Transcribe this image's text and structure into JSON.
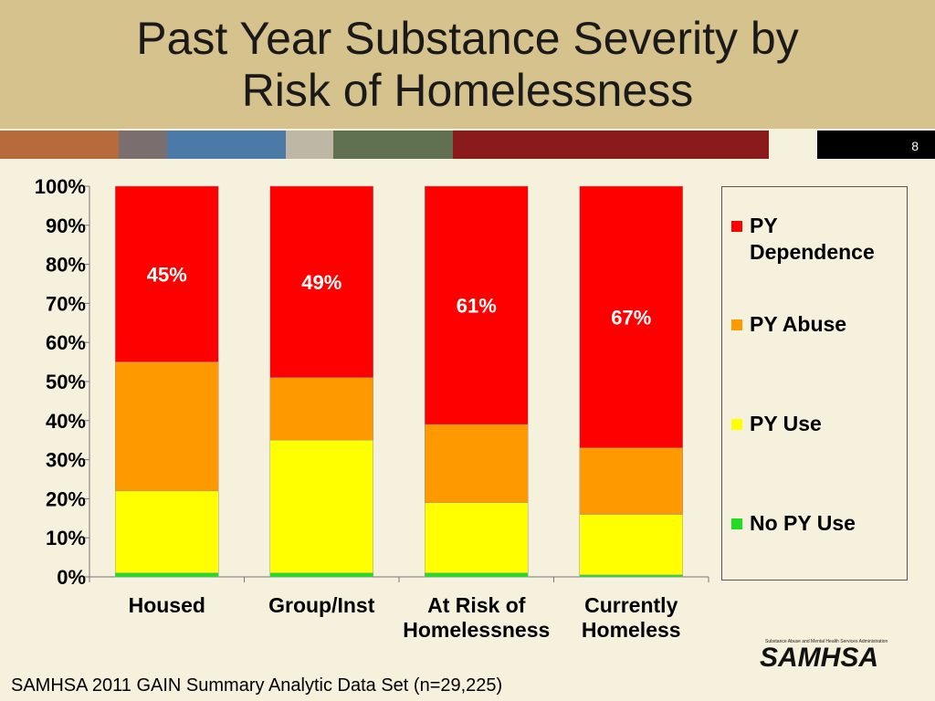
{
  "chart_data": {
    "type": "stacked_bar",
    "title": "Past Year Substance Severity by Risk of Homelessness",
    "categories": [
      "Housed",
      "Group/Inst",
      "At Risk of Homelessness",
      "Currently Homeless"
    ],
    "series": [
      {
        "name": "No PY Use",
        "color": "#22dd22",
        "values": [
          1,
          1,
          1,
          0.5
        ]
      },
      {
        "name": "PY Use",
        "color": "#ffff00",
        "values": [
          21,
          34,
          18,
          15.5
        ]
      },
      {
        "name": "PY Abuse",
        "color": "#ff9900",
        "values": [
          33,
          16,
          20,
          17
        ]
      },
      {
        "name": "PY Dependence",
        "color": "#ff0000",
        "values": [
          45,
          49,
          61,
          67
        ],
        "value_labels": [
          "45%",
          "49%",
          "61%",
          "67%"
        ]
      }
    ],
    "ylim": [
      0,
      100
    ],
    "yticks": [
      {
        "value": 0,
        "label": "0%"
      },
      {
        "value": 10,
        "label": "10%"
      },
      {
        "value": 20,
        "label": "20%"
      },
      {
        "value": 30,
        "label": "30%"
      },
      {
        "value": 40,
        "label": "40%"
      },
      {
        "value": 50,
        "label": "50%"
      },
      {
        "value": 60,
        "label": "60%"
      },
      {
        "value": 70,
        "label": "70%"
      },
      {
        "value": 80,
        "label": "80%"
      },
      {
        "value": 90,
        "label": "90%"
      },
      {
        "value": 100,
        "label": "100%"
      }
    ],
    "legend": "right",
    "grid": false
  },
  "slide": {
    "page_number": "8",
    "footnote": "SAMHSA 2011 GAIN Summary Analytic Data Set (n=29,225)",
    "logo": "SAMHSA",
    "logo_caption": "Substance Abuse and Mental Health Services Administration"
  }
}
